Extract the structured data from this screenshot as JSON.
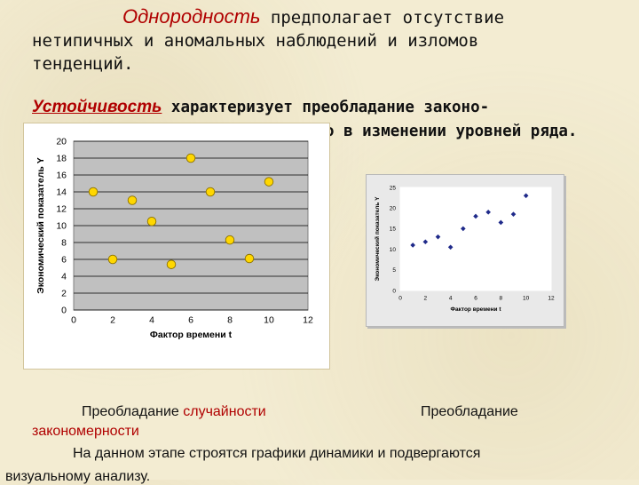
{
  "paragraph1": {
    "term": "Однородность",
    "line1_rest": " предполагает отсутствие",
    "line2": "нетипичных и аномальных наблюдений и изломов",
    "line3": "тенденций."
  },
  "paragraph2": {
    "term": "Устойчивость",
    "line1_rest": " характеризует преобладание законо-",
    "line2": "о в изменении уровней ряда."
  },
  "chart_data": [
    {
      "type": "scatter",
      "title": "",
      "xlabel": "Фактор времени  t",
      "ylabel": "Экономический показатель Y",
      "xlim": [
        0,
        12
      ],
      "ylim": [
        0,
        20
      ],
      "xticks": [
        0,
        2,
        4,
        6,
        8,
        10,
        12
      ],
      "yticks": [
        0,
        2,
        4,
        6,
        8,
        10,
        12,
        14,
        16,
        18,
        20
      ],
      "grid": true,
      "marker": "circle",
      "color": "#ffd700",
      "x": [
        1,
        2,
        3,
        4,
        5,
        6,
        7,
        8,
        9,
        10
      ],
      "y": [
        14,
        6,
        13,
        10.5,
        5.4,
        18,
        14,
        8.3,
        6.1,
        15.2
      ]
    },
    {
      "type": "scatter",
      "title": "",
      "xlabel": "Фактор времени  t",
      "ylabel": "Экономический показатель Y",
      "xlim": [
        0,
        12
      ],
      "ylim": [
        0,
        25
      ],
      "xticks": [
        0,
        2,
        4,
        6,
        8,
        10,
        12
      ],
      "yticks": [
        0,
        5,
        10,
        15,
        20,
        25
      ],
      "grid": false,
      "marker": "diamond",
      "color": "#1f2a8a",
      "x": [
        1,
        2,
        3,
        4,
        5,
        6,
        7,
        8,
        9,
        10
      ],
      "y": [
        11,
        11.8,
        13,
        10.5,
        15,
        18,
        19,
        16.5,
        18.5,
        23
      ]
    }
  ],
  "captions": {
    "left_pre": "Преобладание ",
    "left_word": "случайности",
    "right": "Преобладание",
    "right_cont": "закономерности",
    "bottom_line1": "На данном этапе строятся графики динамики и подвергаются",
    "bottom_line2": "визуальному анализу."
  }
}
